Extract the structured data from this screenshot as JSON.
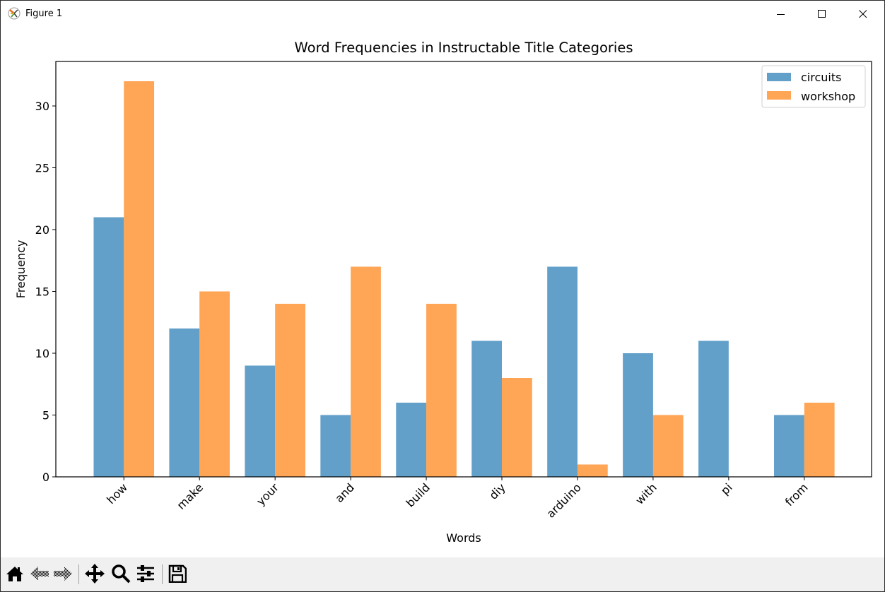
{
  "window": {
    "title": "Figure 1",
    "controls": {
      "minimize": "minimize-icon",
      "maximize": "maximize-icon",
      "close": "close-icon"
    }
  },
  "toolbar": {
    "buttons": [
      {
        "name": "home",
        "icon": "home-icon"
      },
      {
        "name": "back",
        "icon": "back-arrow-icon"
      },
      {
        "name": "forward",
        "icon": "forward-arrow-icon"
      },
      {
        "name": "pan",
        "icon": "move-icon"
      },
      {
        "name": "zoom",
        "icon": "zoom-icon"
      },
      {
        "name": "configure-subplots",
        "icon": "sliders-icon"
      },
      {
        "name": "save",
        "icon": "save-icon"
      }
    ]
  },
  "colors": {
    "circuits": "#1f77b4",
    "workshop": "#ff7f0e",
    "alpha": 0.7
  },
  "chart_data": {
    "type": "bar",
    "title": "Word Frequencies in Instructable Title Categories",
    "xlabel": "Words",
    "ylabel": "Frequency",
    "categories": [
      "how",
      "make",
      "your",
      "and",
      "build",
      "diy",
      "arduino",
      "with",
      "pi",
      "from"
    ],
    "series": [
      {
        "name": "circuits",
        "values": [
          21,
          12,
          9,
          5,
          6,
          11,
          17,
          10,
          11,
          5
        ]
      },
      {
        "name": "workshop",
        "values": [
          32,
          15,
          14,
          17,
          14,
          8,
          1,
          5,
          0,
          6
        ]
      }
    ],
    "ylim": [
      0,
      33.6
    ],
    "yticks": [
      0,
      5,
      10,
      15,
      20,
      25,
      30
    ],
    "xtick_rotation": 45,
    "grid": false,
    "legend_position": "upper right"
  }
}
